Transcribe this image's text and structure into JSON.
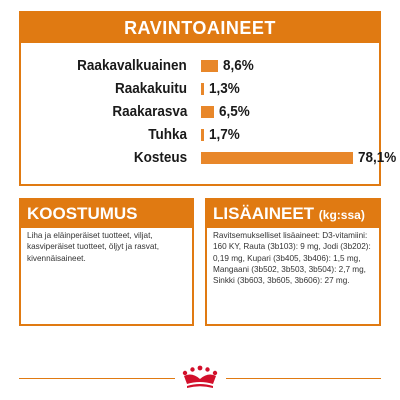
{
  "nutrients": {
    "title": "RAVINTOAINEET",
    "items": [
      {
        "name": "Raakavalkuainen",
        "value": "8,6%",
        "percent": 8.6
      },
      {
        "name": "Raakakuitu",
        "value": "1,3%",
        "percent": 1.3
      },
      {
        "name": "Raakarasva",
        "value": "6,5%",
        "percent": 6.5
      },
      {
        "name": "Tuhka",
        "value": "1,7%",
        "percent": 1.7
      },
      {
        "name": "Kosteus",
        "value": "78,1%",
        "percent": 78.1
      }
    ]
  },
  "composition": {
    "title": "KOOSTUMUS",
    "text": "Liha ja eläinperäiset tuotteet, viljat, kasviperäiset tuotteet, öljyt ja rasvat, kivennäisaineet."
  },
  "additives": {
    "title": "LISÄAINEET",
    "subtitle": "(kg:ssa)",
    "text": "Ravitsemukselliset lisäaineet: D3-vitamiini: 160 KY, Rauta (3b103): 9 mg, Jodi (3b202): 0,19 mg, Kupari (3b405, 3b406): 1,5 mg, Mangaani (3b502, 3b503, 3b504): 2,7 mg, Sinkki (3b603, 3b605, 3b606): 27 mg."
  },
  "colors": {
    "accent": "#e07a12",
    "bar": "#e8872a",
    "logo": "#d2102b"
  },
  "footer": {
    "logo": "royal-canin-crown-icon"
  }
}
